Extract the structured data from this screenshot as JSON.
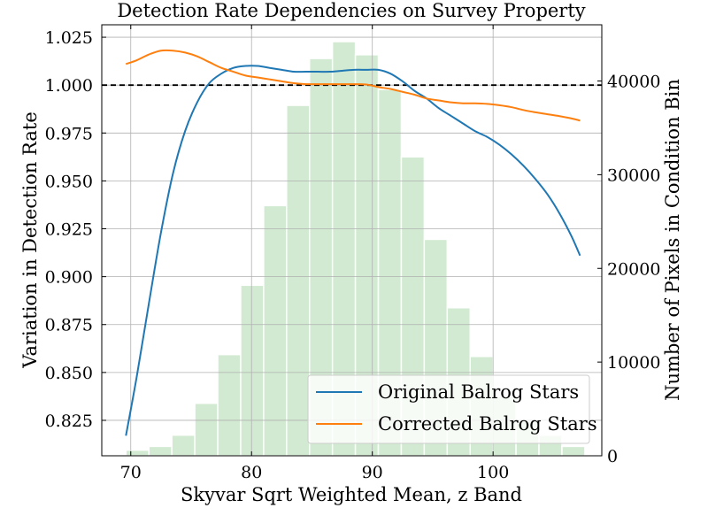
{
  "chart_data": {
    "type": "line",
    "title": "Detection Rate Dependencies on Survey Property",
    "xlabel": "Skyvar Sqrt Weighted Mean, z Band",
    "ylabel": "Variation in Detection Rate",
    "y2label": "Number of Pixels in Condition Bin",
    "xlim": [
      67.6,
      109.0
    ],
    "ylim": [
      0.8065,
      1.0315
    ],
    "y2lim": [
      0,
      46000
    ],
    "xticks": [
      70,
      80,
      90,
      100
    ],
    "yticks": [
      0.825,
      0.85,
      0.875,
      0.9,
      0.925,
      0.95,
      0.975,
      1.0,
      1.025
    ],
    "y2ticks": [
      0,
      10000,
      20000,
      30000,
      40000
    ],
    "reference_line": 1.0,
    "grid": true,
    "legend_position": "bottom-right",
    "series": [
      {
        "name": "Original Balrog Stars",
        "color": "#1f77b4",
        "x": [
          69.6,
          70.5,
          71.5,
          72.5,
          73.5,
          74.5,
          75.5,
          76.5,
          77.5,
          78.5,
          79.5,
          80.5,
          81.5,
          82.5,
          83.5,
          84.5,
          85.5,
          86.5,
          87.5,
          88.5,
          89.5,
          90.5,
          91.5,
          92.5,
          93.5,
          94.5,
          95.5,
          96.5,
          97.5,
          98.5,
          99.5,
          100.5,
          101.5,
          102.5,
          103.5,
          104.5,
          105.5,
          106.5,
          107.2
        ],
        "y": [
          0.817,
          0.848,
          0.886,
          0.923,
          0.954,
          0.976,
          0.991,
          1.001,
          1.006,
          1.009,
          1.01,
          1.01,
          1.009,
          1.008,
          1.007,
          1.007,
          1.007,
          1.007,
          1.0075,
          1.008,
          1.008,
          1.008,
          1.006,
          1.002,
          0.997,
          0.993,
          0.988,
          0.984,
          0.98,
          0.976,
          0.973,
          0.969,
          0.964,
          0.958,
          0.951,
          0.943,
          0.933,
          0.921,
          0.911
        ]
      },
      {
        "name": "Corrected Balrog Stars",
        "color": "#ff7f0e",
        "x": [
          69.6,
          70.5,
          71.5,
          72.5,
          73.5,
          74.5,
          75.5,
          76.5,
          77.5,
          78.5,
          79.5,
          80.5,
          81.5,
          82.5,
          83.5,
          84.5,
          85.5,
          86.5,
          87.5,
          88.5,
          89.5,
          90.5,
          91.5,
          92.5,
          93.5,
          94.5,
          95.5,
          96.5,
          97.5,
          98.5,
          99.5,
          100.5,
          101.5,
          102.5,
          103.5,
          104.5,
          105.5,
          106.5,
          107.2
        ],
        "y": [
          1.011,
          1.013,
          1.016,
          1.018,
          1.018,
          1.017,
          1.015,
          1.012,
          1.009,
          1.007,
          1.005,
          1.004,
          1.003,
          1.002,
          1.001,
          1.0005,
          1.0005,
          1.0005,
          1.0005,
          1.0005,
          1.0003,
          0.999,
          0.998,
          0.9965,
          0.995,
          0.993,
          0.992,
          0.991,
          0.9905,
          0.9905,
          0.9902,
          0.9895,
          0.9885,
          0.987,
          0.9858,
          0.9848,
          0.9838,
          0.9826,
          0.9815
        ]
      }
    ],
    "histogram": {
      "name": "Number of Pixels in Condition Bin",
      "color": "#2ca02c",
      "opacity": 0.22,
      "axis": "right",
      "bin_edges": [
        69.6,
        71.5,
        73.4,
        75.3,
        77.2,
        79.1,
        81.0,
        82.9,
        84.8,
        86.7,
        88.6,
        90.5,
        92.4,
        94.3,
        96.2,
        98.1,
        100.0,
        101.9,
        103.8,
        105.7,
        107.6
      ],
      "counts": [
        600,
        1000,
        2200,
        5600,
        10800,
        18200,
        26700,
        37400,
        42400,
        44200,
        42800,
        39100,
        31900,
        23100,
        15800,
        10600,
        6300,
        3700,
        2200,
        1000
      ]
    }
  }
}
